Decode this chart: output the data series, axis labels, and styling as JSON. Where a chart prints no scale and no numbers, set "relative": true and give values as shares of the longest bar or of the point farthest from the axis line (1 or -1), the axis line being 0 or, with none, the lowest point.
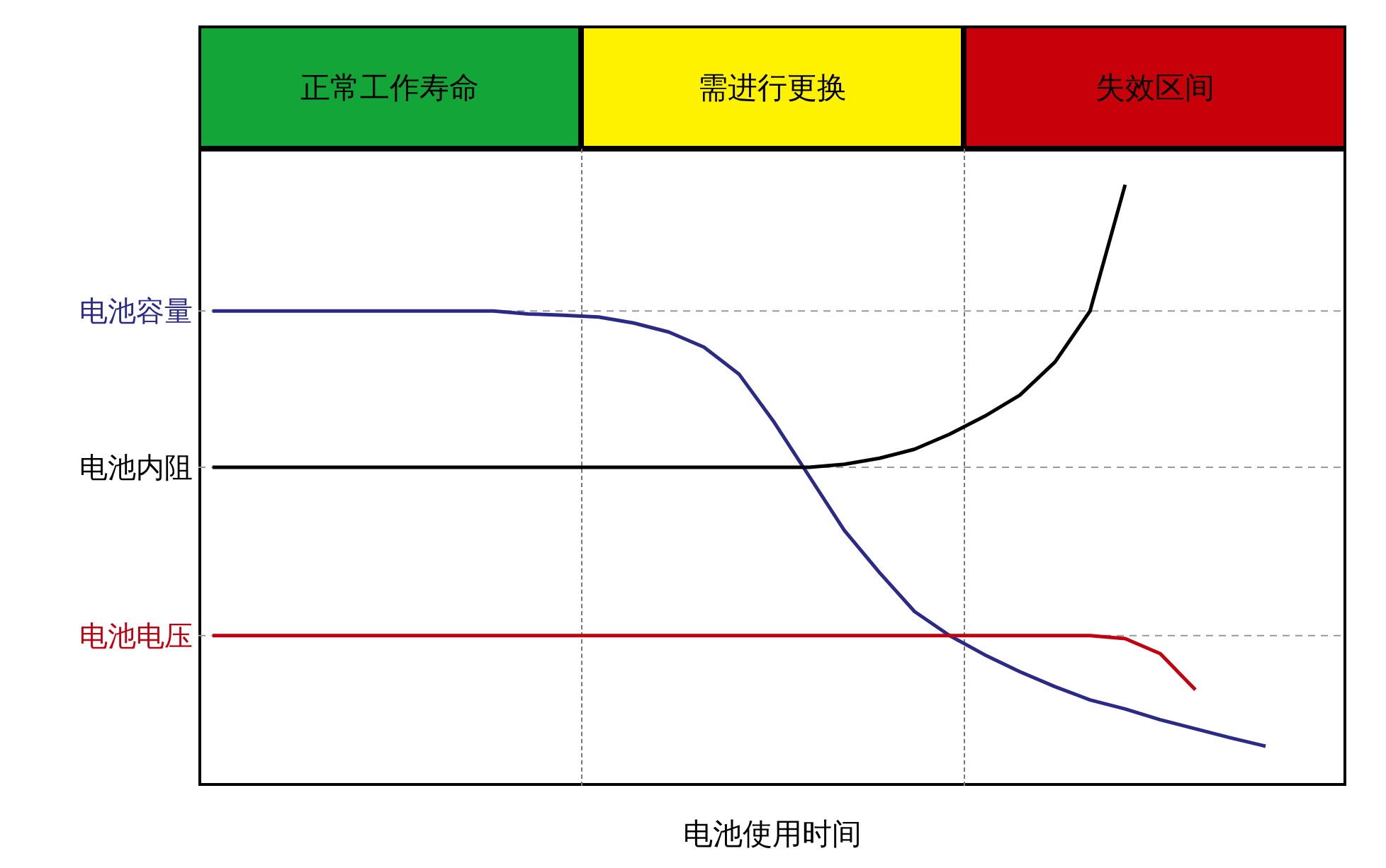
{
  "chart_data": {
    "type": "line",
    "relative": true,
    "xlabel": "电池使用时间",
    "marker": "none",
    "line_style": "solid",
    "annotations": [
      "正常工作寿命",
      "需进行更换",
      "失效区间"
    ],
    "categories": [
      null,
      null,
      null,
      null,
      null,
      null,
      null,
      null,
      null,
      null,
      null,
      null,
      null,
      null,
      null,
      null,
      null,
      null,
      null,
      null,
      null,
      null,
      null,
      null,
      null,
      null,
      null,
      null,
      null,
      null,
      null
    ],
    "ref_lines": [
      {
        "axis": "y",
        "value": 0.79,
        "color": "#999999",
        "line_style": "dashed"
      },
      {
        "axis": "y",
        "value": 0.53,
        "color": "#999999",
        "line_style": "dashed"
      },
      {
        "axis": "y",
        "value": 0.25,
        "color": "#999999",
        "line_style": "dashed"
      }
    ],
    "series": [
      {
        "name": "电池容量",
        "color": "#2b2a86",
        "values": [
          0.79,
          0.79,
          0.79,
          0.79,
          0.79,
          0.79,
          0.79,
          0.79,
          0.79,
          0.785,
          0.783,
          0.78,
          0.77,
          0.755,
          0.73,
          0.685,
          0.605,
          0.515,
          0.425,
          0.355,
          0.29,
          0.25,
          0.218,
          0.19,
          0.165,
          0.143,
          0.128,
          0.11,
          0.095,
          0.08,
          0.066
        ]
      },
      {
        "name": "电池内阻",
        "color": "#000000",
        "values": [
          0.53,
          0.53,
          0.53,
          0.53,
          0.53,
          0.53,
          0.53,
          0.53,
          0.53,
          0.53,
          0.53,
          0.53,
          0.53,
          0.53,
          0.53,
          0.53,
          0.53,
          0.53,
          0.535,
          0.545,
          0.56,
          0.585,
          0.615,
          0.65,
          0.705,
          0.79,
          1.0,
          null,
          null,
          null,
          null
        ]
      },
      {
        "name": "电池电压",
        "color": "#c00010",
        "values": [
          0.25,
          0.25,
          0.25,
          0.25,
          0.25,
          0.25,
          0.25,
          0.25,
          0.25,
          0.25,
          0.25,
          0.25,
          0.25,
          0.25,
          0.25,
          0.25,
          0.25,
          0.25,
          0.25,
          0.25,
          0.25,
          0.25,
          0.25,
          0.25,
          0.25,
          0.25,
          0.245,
          0.22,
          0.16,
          null,
          null
        ]
      }
    ]
  }
}
